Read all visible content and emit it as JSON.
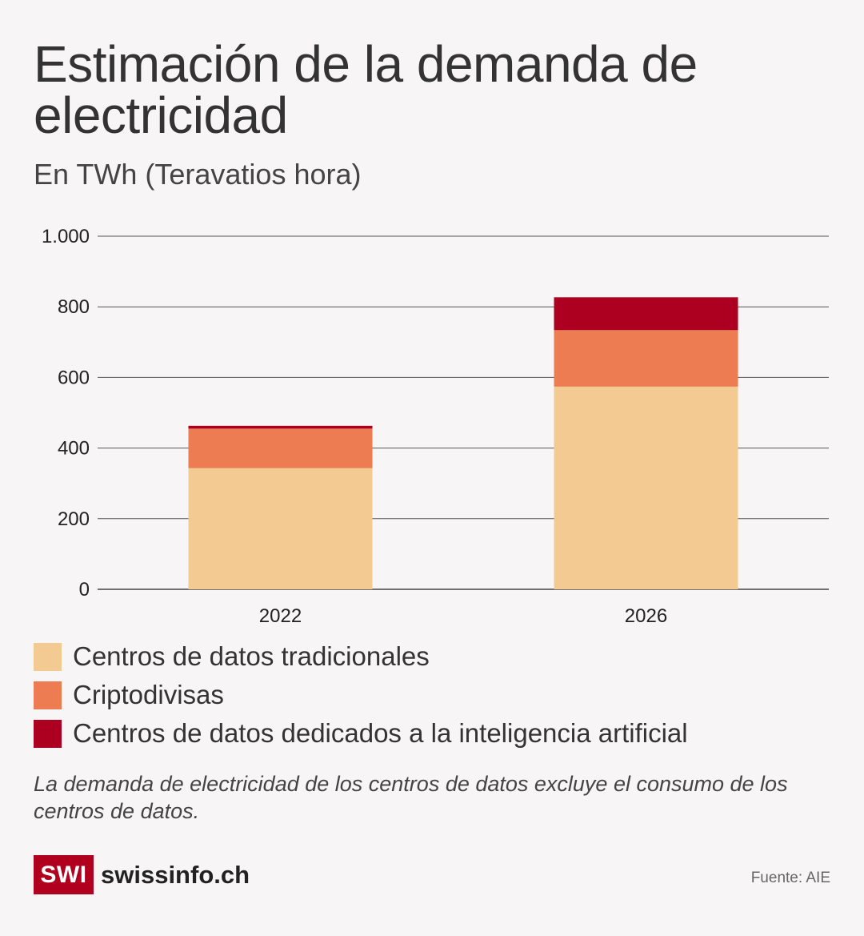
{
  "header": {
    "title": "Estimación de la demanda de electricidad",
    "subtitle": "En TWh (Teravatios hora)"
  },
  "chart_data": {
    "type": "bar",
    "stacked": true,
    "title": "Estimación de la demanda de electricidad",
    "subtitle": "En TWh (Teravatios hora)",
    "xlabel": "",
    "ylabel": "",
    "categories": [
      "2022",
      "2026"
    ],
    "ylim": [
      0,
      1000
    ],
    "yticks": [
      0,
      200,
      400,
      600,
      800,
      1000
    ],
    "ytick_labels": [
      "0",
      "200",
      "400",
      "600",
      "800",
      "1.000"
    ],
    "grid": true,
    "series": [
      {
        "name": "Centros de datos tradicionales",
        "color": "#f2ca92",
        "values": [
          343,
          574
        ]
      },
      {
        "name": "Criptodivisas",
        "color": "#ee7c52",
        "values": [
          112,
          160
        ]
      },
      {
        "name": "Centros de datos dedicados a la inteligencia artificial",
        "color": "#ad0020",
        "values": [
          8,
          93
        ]
      }
    ]
  },
  "note": "La demanda de electricidad de los centros de datos excluye el consumo de los centros de datos.",
  "footer": {
    "logo_mark": "SWI",
    "logo_text": "swissinfo.ch",
    "source": "Fuente: AIE",
    "brand_color": "#b0001e"
  }
}
